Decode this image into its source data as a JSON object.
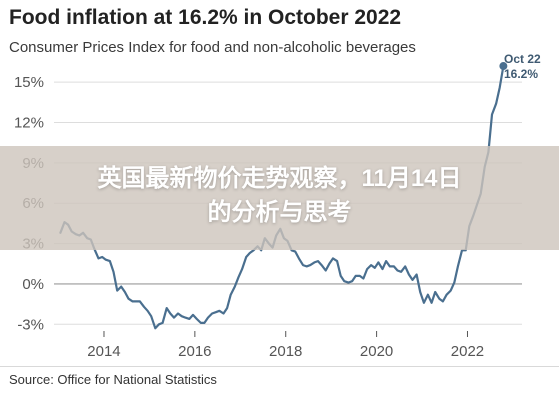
{
  "header": {
    "title": "Food inflation at 16.2% in October 2022",
    "subtitle": "Consumer Prices Index for food and non-alcoholic beverages"
  },
  "overlay": {
    "line1": "英国最新物价走势观察，11月14日",
    "line2": "的分析与思考"
  },
  "footer": {
    "source": "Source: Office for National Statistics"
  },
  "chart_data": {
    "type": "line",
    "title": "Food inflation at 16.2% in October 2022",
    "subtitle": "Consumer Prices Index for food and non-alcoholic beverages",
    "xlabel": "",
    "ylabel": "",
    "xlim": [
      2012.9,
      2023.2
    ],
    "ylim": [
      -3.5,
      16.5
    ],
    "x_ticks": [
      2014,
      2016,
      2018,
      2020,
      2022
    ],
    "x_tick_labels": [
      "2014",
      "2016",
      "2018",
      "2020",
      "2022"
    ],
    "y_ticks": [
      -3,
      0,
      3,
      6,
      9,
      12,
      15
    ],
    "y_tick_labels": [
      "-3%",
      "0%",
      "3%",
      "6%",
      "9%",
      "12%",
      "15%"
    ],
    "grid": true,
    "line_color": "#4a6f8f",
    "annotation": {
      "line1": "Oct 22",
      "line2": "16.2%",
      "x": 2022.79,
      "y": 16.2
    },
    "series": [
      {
        "x": [
          2013.04,
          2013.13,
          2013.21,
          2013.29,
          2013.38,
          2013.46,
          2013.54,
          2013.63,
          2013.71,
          2013.79,
          2013.88,
          2013.96,
          2014.04,
          2014.13,
          2014.21,
          2014.29,
          2014.38,
          2014.46,
          2014.54,
          2014.63,
          2014.71,
          2014.79,
          2014.88,
          2014.96,
          2015.04,
          2015.13,
          2015.21,
          2015.29,
          2015.38,
          2015.46,
          2015.54,
          2015.63,
          2015.71,
          2015.79,
          2015.88,
          2015.96,
          2016.04,
          2016.13,
          2016.21,
          2016.29,
          2016.38,
          2016.46,
          2016.54,
          2016.63,
          2016.71,
          2016.79,
          2016.88,
          2016.96,
          2017.04,
          2017.13,
          2017.21,
          2017.29,
          2017.38,
          2017.46,
          2017.54,
          2017.63,
          2017.71,
          2017.79,
          2017.88,
          2017.96,
          2018.04,
          2018.13,
          2018.21,
          2018.29,
          2018.38,
          2018.46,
          2018.54,
          2018.63,
          2018.71,
          2018.79,
          2018.88,
          2018.96,
          2019.04,
          2019.13,
          2019.21,
          2019.29,
          2019.38,
          2019.46,
          2019.54,
          2019.63,
          2019.71,
          2019.79,
          2019.88,
          2019.96,
          2020.04,
          2020.13,
          2020.21,
          2020.29,
          2020.38,
          2020.46,
          2020.54,
          2020.63,
          2020.71,
          2020.79,
          2020.88,
          2020.96,
          2021.04,
          2021.13,
          2021.21,
          2021.29,
          2021.38,
          2021.46,
          2021.54,
          2021.63,
          2021.71,
          2021.79,
          2021.88,
          2021.96,
          2022.04,
          2022.13,
          2022.21,
          2022.29,
          2022.38,
          2022.46,
          2022.54,
          2022.63,
          2022.71,
          2022.79
        ],
        "values": [
          3.8,
          4.6,
          4.4,
          3.9,
          3.7,
          3.6,
          3.8,
          3.4,
          3.3,
          2.6,
          1.9,
          2.0,
          1.8,
          1.7,
          0.9,
          -0.5,
          -0.2,
          -0.6,
          -1.1,
          -1.3,
          -1.3,
          -1.3,
          -1.7,
          -2.0,
          -2.4,
          -3.3,
          -3.0,
          -2.9,
          -1.8,
          -2.2,
          -2.5,
          -2.2,
          -2.4,
          -2.5,
          -2.6,
          -2.3,
          -2.6,
          -2.9,
          -2.9,
          -2.5,
          -2.2,
          -2.1,
          -2.0,
          -2.2,
          -1.8,
          -0.8,
          -0.2,
          0.5,
          1.1,
          2.0,
          2.3,
          2.5,
          2.8,
          2.5,
          3.4,
          3.0,
          2.7,
          3.6,
          4.1,
          3.4,
          3.2,
          2.5,
          2.4,
          1.9,
          1.4,
          1.3,
          1.4,
          1.6,
          1.7,
          1.4,
          1.0,
          1.5,
          1.9,
          1.7,
          0.6,
          0.2,
          0.1,
          0.2,
          0.6,
          0.6,
          0.4,
          1.1,
          1.4,
          1.2,
          1.6,
          1.1,
          1.7,
          1.3,
          1.3,
          1.0,
          0.9,
          1.3,
          0.7,
          0.3,
          0.7,
          -0.6,
          -1.4,
          -0.8,
          -1.4,
          -0.6,
          -1.1,
          -1.3,
          -0.8,
          -0.5,
          0.1,
          1.3,
          2.5,
          2.5,
          4.3,
          5.1,
          5.9,
          6.7,
          8.7,
          9.8,
          12.6,
          13.4,
          14.6,
          16.2
        ]
      }
    ]
  }
}
